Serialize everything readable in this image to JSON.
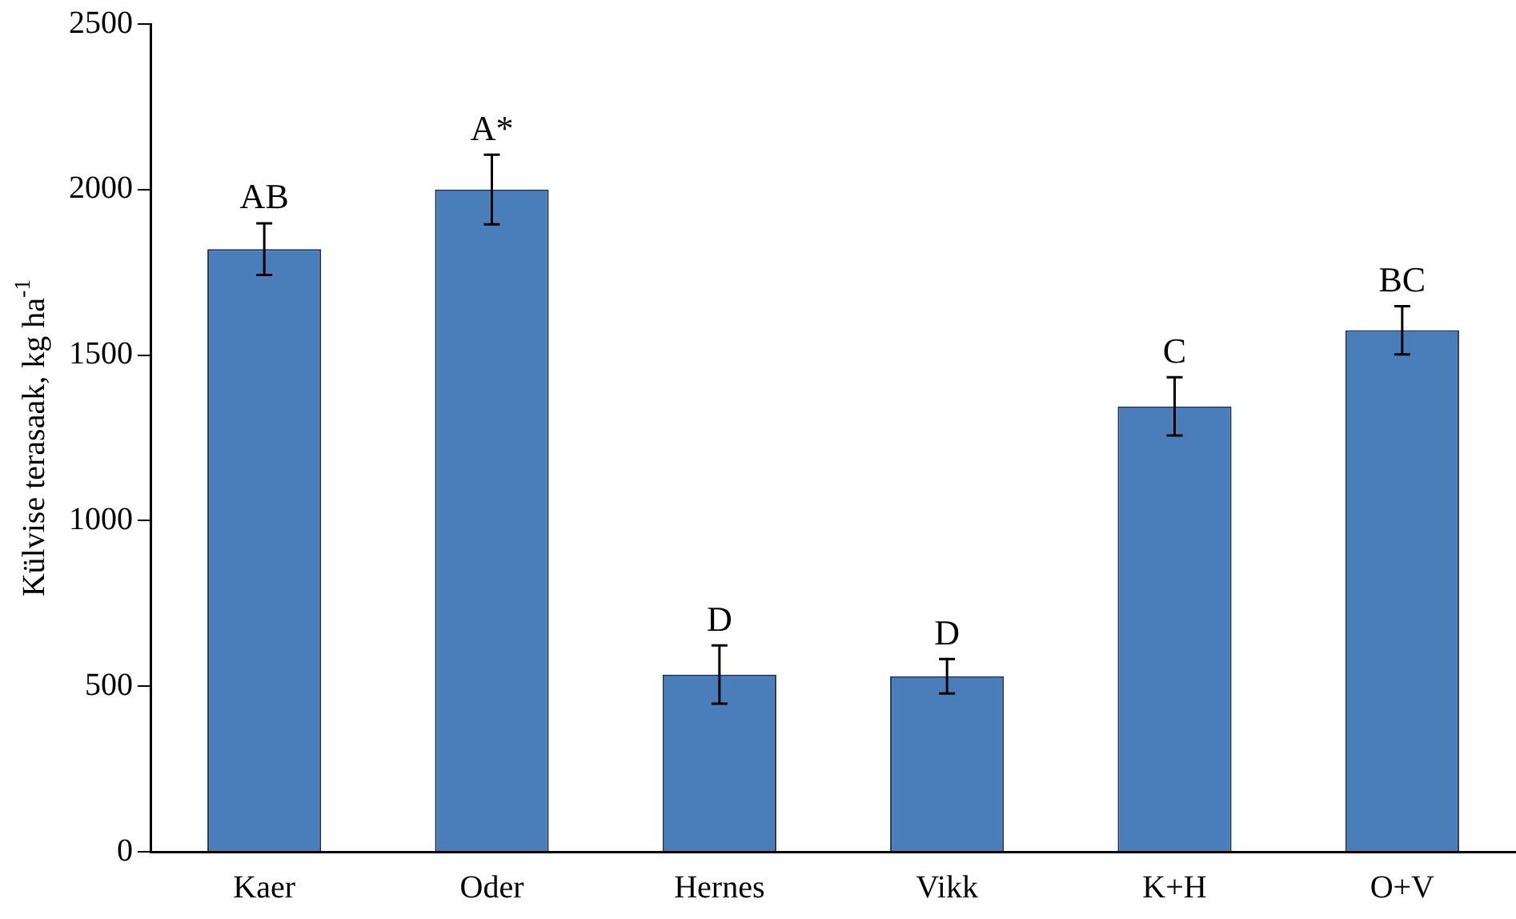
{
  "chart_data": {
    "type": "bar",
    "ylabel": "Külvise terasaak, kg ha$^{-1}$",
    "categories": [
      "Kaer",
      "Oder",
      "Hernes",
      "Vikk",
      "K+H",
      "O+V"
    ],
    "values": [
      1820,
      2000,
      535,
      530,
      1345,
      1575
    ],
    "errors": [
      78,
      105,
      88,
      52,
      88,
      73
    ],
    "color": "#4a7ebb",
    "ylim": [
      0,
      2500
    ],
    "yticks": [
      0,
      500,
      1000,
      1500,
      2000,
      2500
    ],
    "grid": false,
    "legend": false,
    "annotations": [
      {
        "text": "AB",
        "x": "Kaer",
        "y": 1900
      },
      {
        "text": "A*",
        "x": "Oder",
        "y": 2105
      },
      {
        "text": "D",
        "x": "Hernes",
        "y": 623
      },
      {
        "text": "D",
        "x": "Vikk",
        "y": 582
      },
      {
        "text": "C",
        "x": "K+H",
        "y": 1433
      },
      {
        "text": "BC",
        "x": "O+V",
        "y": 1648
      }
    ]
  }
}
